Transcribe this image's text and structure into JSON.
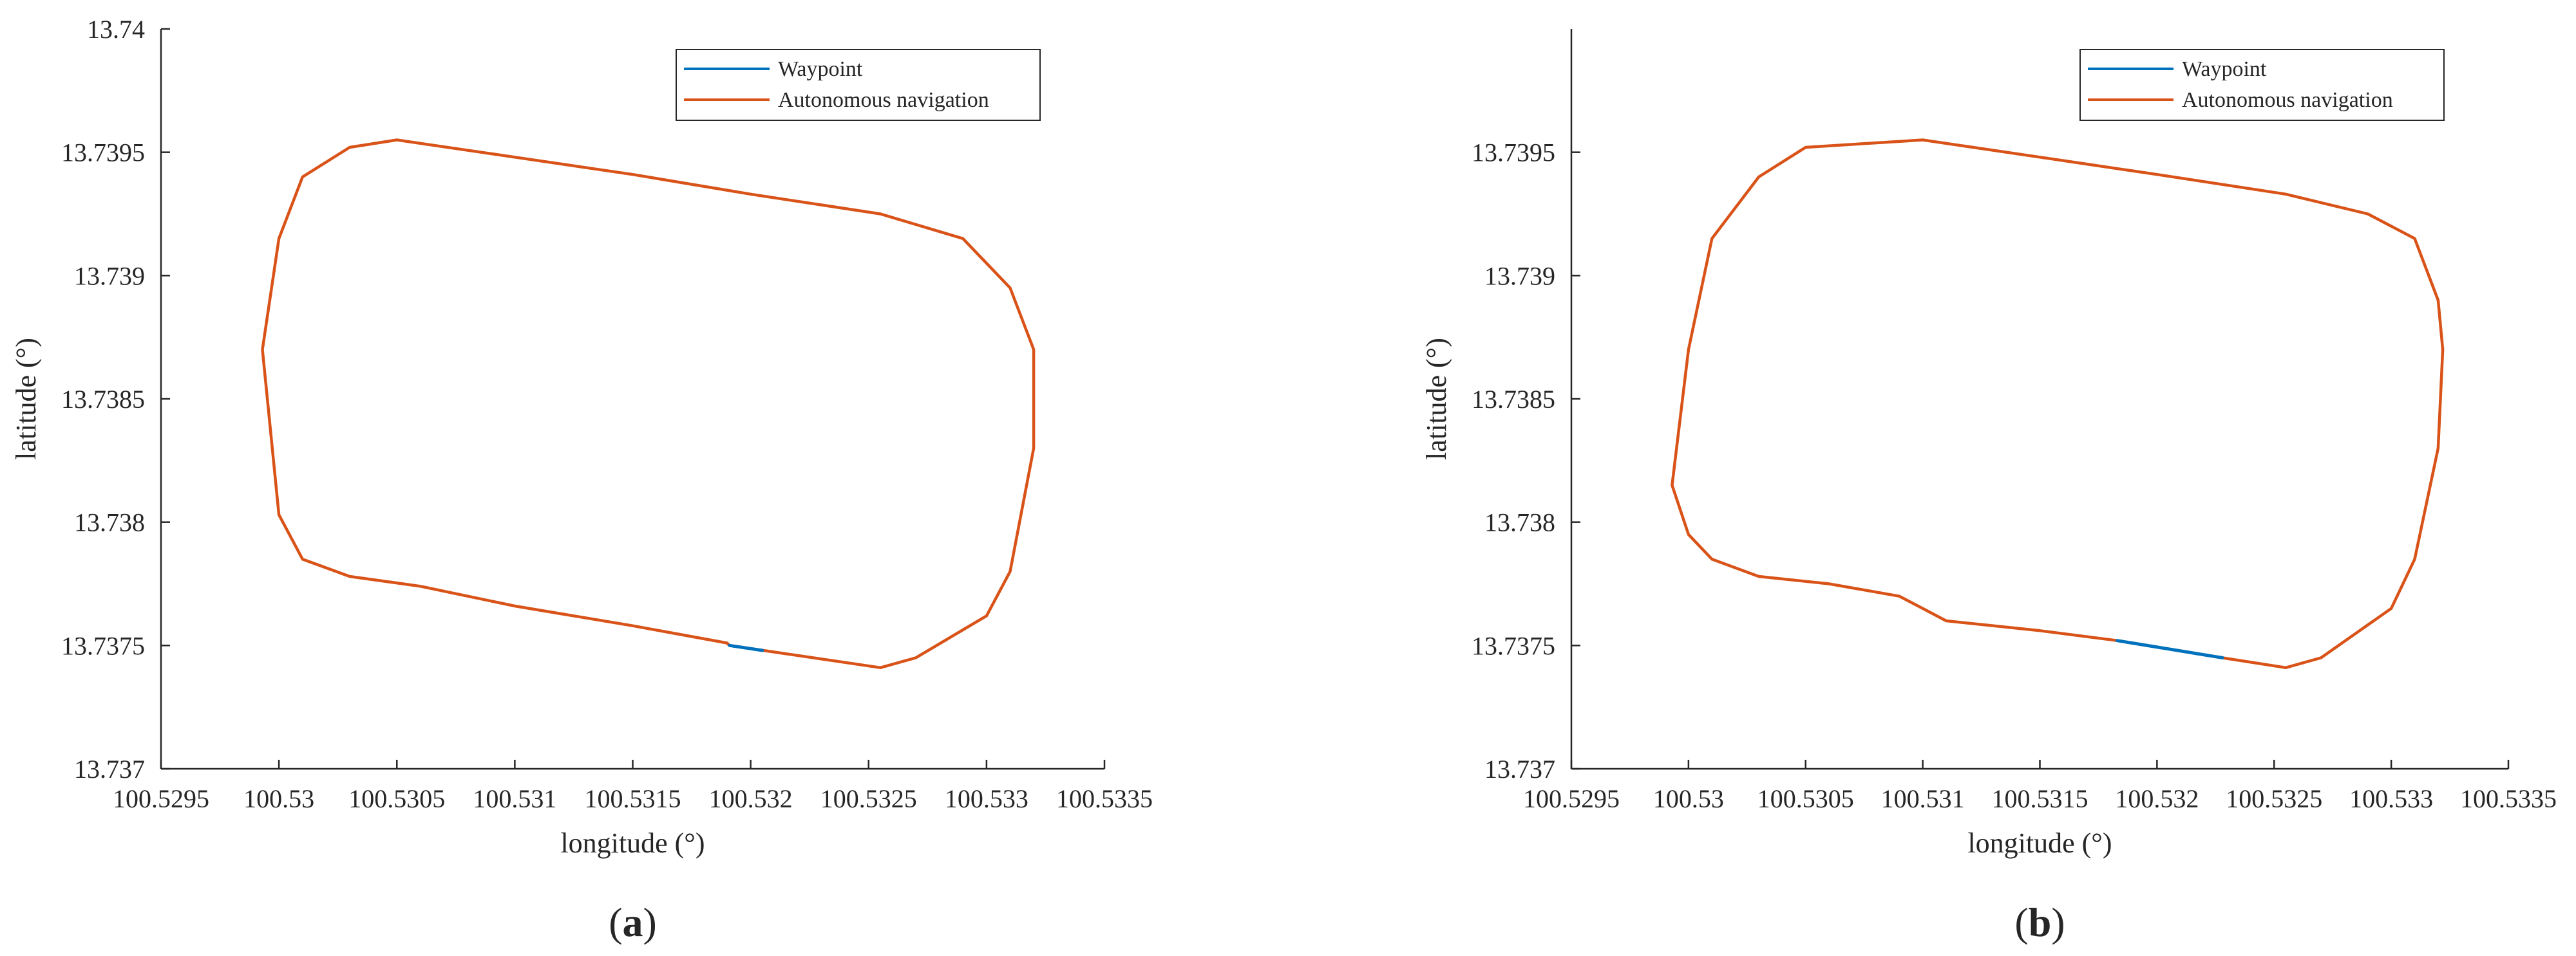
{
  "chart_data": [
    {
      "type": "line",
      "panel_label": "a",
      "xlabel": "longitude (°)",
      "ylabel": "latitude (°)",
      "xlim": [
        100.5295,
        100.5335
      ],
      "ylim": [
        13.737,
        13.74
      ],
      "xticks": [
        "100.5295",
        "100.53",
        "100.5305",
        "100.531",
        "100.5315",
        "100.532",
        "100.5325",
        "100.533",
        "100.5335"
      ],
      "yticks": [
        "13.737",
        "13.7375",
        "13.738",
        "13.7385",
        "13.739",
        "13.7395",
        "13.74"
      ],
      "box": false,
      "legend_position": "top-right",
      "series": [
        {
          "name": "Waypoint",
          "color": "#0072BD",
          "x": [
            100.53191,
            100.53205
          ],
          "y": [
            13.7375,
            13.73748
          ]
        },
        {
          "name": "Autonomous navigation",
          "color": "#D95319",
          "x": [
            100.53191,
            100.53255,
            100.5327,
            100.533,
            100.5331,
            100.5332,
            100.5332,
            100.5331,
            100.5329,
            100.53255,
            100.532,
            100.5315,
            100.531,
            100.5305,
            100.5303,
            100.5301,
            100.53,
            100.52993,
            100.53,
            100.5301,
            100.5303,
            100.5306,
            100.531,
            100.5315,
            100.5319,
            100.53191
          ],
          "y": [
            13.7375,
            13.73741,
            13.73745,
            13.73762,
            13.7378,
            13.7383,
            13.7387,
            13.73895,
            13.73915,
            13.73925,
            13.73933,
            13.73941,
            13.73948,
            13.73955,
            13.73952,
            13.7394,
            13.73915,
            13.7387,
            13.73803,
            13.73785,
            13.73778,
            13.73774,
            13.73766,
            13.73758,
            13.73751,
            13.7375
          ]
        }
      ]
    },
    {
      "type": "line",
      "panel_label": "b",
      "xlabel": "longitude (°)",
      "ylabel": "latitude (°)",
      "xlim": [
        100.5295,
        100.5335
      ],
      "ylim": [
        13.737,
        13.74
      ],
      "xticks": [
        "100.5295",
        "100.53",
        "100.5305",
        "100.531",
        "100.5315",
        "100.532",
        "100.5325",
        "100.533",
        "100.5335"
      ],
      "yticks": [
        "13.737",
        "13.7375",
        "13.738",
        "13.7385",
        "13.739",
        "13.7395"
      ],
      "box": false,
      "legend_position": "top-right",
      "series": [
        {
          "name": "Waypoint",
          "color": "#0072BD",
          "x": [
            100.53183,
            100.53228
          ],
          "y": [
            13.73752,
            13.73745
          ]
        },
        {
          "name": "Autonomous navigation",
          "color": "#D95319",
          "x": [
            100.53183,
            100.53228,
            100.53255,
            100.5327,
            100.533,
            100.5331,
            100.5332,
            100.53322,
            100.5332,
            100.5331,
            100.5329,
            100.53255,
            100.532,
            100.5315,
            100.531,
            100.5305,
            100.5303,
            100.5301,
            100.53,
            100.52993,
            100.53,
            100.5301,
            100.5303,
            100.5306,
            100.5309,
            100.531,
            100.5311,
            100.5315,
            100.53183
          ],
          "y": [
            13.73752,
            13.73745,
            13.73741,
            13.73745,
            13.73765,
            13.73785,
            13.7383,
            13.7387,
            13.7389,
            13.73915,
            13.73925,
            13.73933,
            13.73941,
            13.73948,
            13.73955,
            13.73952,
            13.7394,
            13.73915,
            13.7387,
            13.73815,
            13.73795,
            13.73785,
            13.73778,
            13.73775,
            13.7377,
            13.73765,
            13.7376,
            13.73756,
            13.73752
          ]
        }
      ]
    }
  ]
}
